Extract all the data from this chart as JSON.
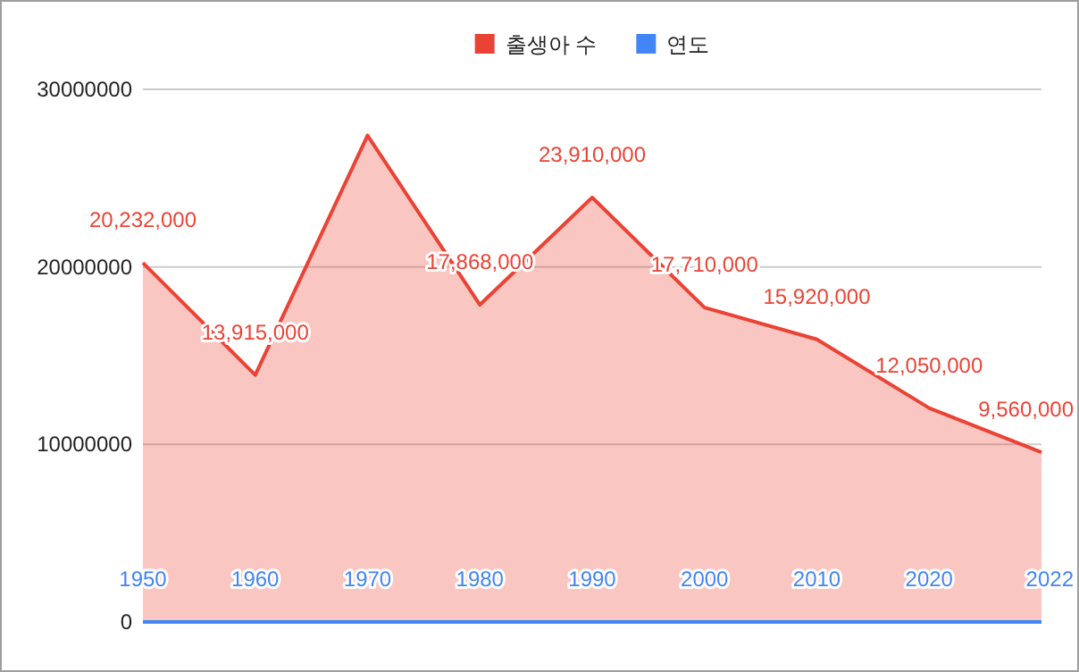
{
  "chart_data": {
    "type": "area",
    "categories": [
      null,
      null,
      null,
      null,
      null,
      null,
      null,
      null,
      null
    ],
    "series": [
      {
        "name": "출생아 수",
        "color": "#ea4335",
        "values": [
          20232000,
          13915000,
          27400000,
          17868000,
          23910000,
          17710000,
          15920000,
          12050000,
          9560000
        ],
        "value_labels": [
          "20,232,000",
          "13,915,000",
          null,
          "17,868,000",
          "23,910,000",
          "17,710,000",
          "15,920,000",
          "12,050,000",
          "9,560,000"
        ]
      },
      {
        "name": "연도",
        "color": "#4285f4",
        "values": [
          1950,
          1960,
          1970,
          1980,
          1990,
          2000,
          2010,
          2020,
          2022
        ],
        "value_labels": [
          "1950",
          "1960",
          "1970",
          "1980",
          "1990",
          "2000",
          "2010",
          "2020",
          "2022"
        ]
      }
    ],
    "ylim": [
      0,
      30000000
    ],
    "yticks": [
      0,
      10000000,
      20000000,
      30000000
    ],
    "grid": "y",
    "legend": "top"
  }
}
